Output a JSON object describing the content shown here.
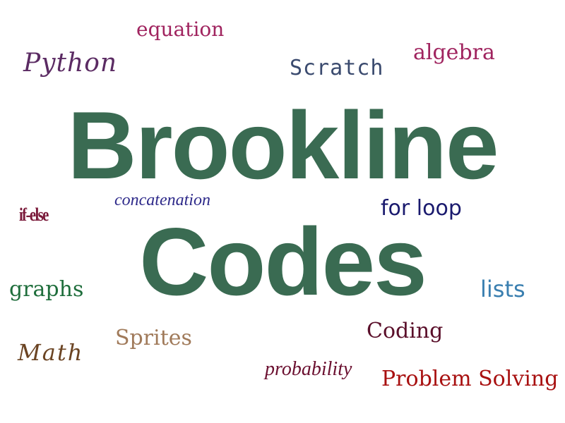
{
  "colors": {
    "title": "#3a6b52",
    "equation": "#a0245f",
    "python": "#5b2b63",
    "scratch": "#3a4a6e",
    "algebra": "#a0245f",
    "concatenation": "#2e2a8a",
    "if_else": "#7a1a3a",
    "for_loop": "#1a1a6e",
    "graphs": "#1f6e3c",
    "lists": "#3a7fb0",
    "coding": "#5a0f2a",
    "sprites": "#a07a5a",
    "math": "#6b4423",
    "probability": "#6b1030",
    "problem_solving": "#a81010"
  },
  "title": {
    "line1": "Brookline",
    "line2": "Codes"
  },
  "words": {
    "equation": "equation",
    "python": "Python",
    "scratch": "Scratch",
    "algebra": "algebra",
    "concatenation": "concatenation",
    "if_else": "if-else",
    "for_loop": "for loop",
    "graphs": "graphs",
    "lists": "lists",
    "coding": "Coding",
    "sprites": "Sprites",
    "math": "Math",
    "probability": "probability",
    "problem_solving": "Problem Solving"
  }
}
